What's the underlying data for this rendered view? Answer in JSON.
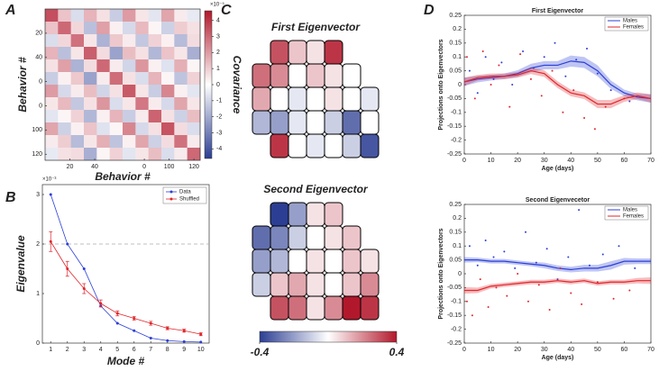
{
  "chart_data": [
    {
      "type": "heatmap",
      "panel_label": "A",
      "xlabel": "Behavior #",
      "ylabel": "Behavior #",
      "colorbar_label": "Covariance",
      "colorbar_exponent": "×10⁻⁵",
      "xlim": [
        0,
        125
      ],
      "ylim": [
        0,
        125
      ],
      "xticks": [
        20,
        40,
        {
          "value": 80,
          "label": "0"
        },
        100,
        120
      ],
      "yticks": [
        20,
        40,
        {
          "value": 60,
          "label": "0"
        },
        {
          "value": 80,
          "label": "0"
        },
        100,
        120
      ],
      "clim": [
        -4.6,
        4.6
      ],
      "cticks": [
        4,
        3,
        2,
        1,
        0,
        -1,
        -2,
        -3,
        -4
      ],
      "values": [
        [
          3.5,
          1.2,
          -0.8,
          1.5,
          0.6,
          -1.2,
          2.0,
          0.5,
          -0.6,
          1.8,
          0.4,
          -0.5
        ],
        [
          1.2,
          3.0,
          0.8,
          -1.5,
          1.9,
          0.3,
          -0.9,
          1.4,
          0.2,
          -1.1,
          1.0,
          0.6
        ],
        [
          -0.8,
          0.8,
          2.8,
          0.5,
          -1.8,
          1.1,
          0.4,
          -1.3,
          0.9,
          0.3,
          -1.6,
          0.7
        ],
        [
          1.5,
          -1.5,
          0.5,
          3.2,
          0.7,
          -2.2,
          1.3,
          0.6,
          -1.7,
          1.2,
          0.5,
          -1.9
        ],
        [
          0.6,
          1.9,
          -1.8,
          0.7,
          3.0,
          0.4,
          -1.0,
          2.1,
          0.3,
          -0.7,
          1.6,
          0.2
        ],
        [
          -1.2,
          0.3,
          1.1,
          -2.2,
          0.4,
          2.9,
          0.6,
          -0.8,
          1.5,
          0.2,
          -1.4,
          0.9
        ],
        [
          2.0,
          -0.9,
          0.4,
          1.3,
          -1.0,
          0.6,
          3.3,
          0.5,
          -1.2,
          2.4,
          0.3,
          -0.6
        ],
        [
          0.5,
          1.4,
          -1.3,
          0.6,
          2.1,
          -0.8,
          0.5,
          2.7,
          0.4,
          -0.9,
          1.8,
          0.5
        ],
        [
          -0.6,
          0.2,
          0.9,
          -1.7,
          0.3,
          1.5,
          -1.2,
          0.4,
          3.1,
          0.6,
          -1.1,
          1.3
        ],
        [
          1.8,
          -1.1,
          0.3,
          1.2,
          -0.7,
          0.2,
          2.4,
          -0.9,
          0.6,
          3.4,
          0.7,
          -0.8
        ],
        [
          0.4,
          1.0,
          -1.6,
          0.5,
          1.6,
          -1.4,
          0.3,
          1.8,
          -1.1,
          0.7,
          2.8,
          0.4
        ],
        [
          -0.5,
          0.6,
          0.7,
          -1.9,
          0.2,
          0.9,
          -0.6,
          0.5,
          1.3,
          -0.8,
          0.4,
          3.0
        ]
      ]
    },
    {
      "type": "line",
      "panel_label": "B",
      "xlabel": "Mode #",
      "ylabel": "Eigenvalue",
      "y_exponent": "×10⁻³",
      "x": [
        1,
        2,
        3,
        4,
        5,
        6,
        7,
        8,
        9,
        10
      ],
      "xlim": [
        0.5,
        10.5
      ],
      "ylim": [
        0,
        3.2
      ],
      "xticks": [
        1,
        2,
        3,
        4,
        5,
        6,
        7,
        8,
        9,
        10
      ],
      "yticks": [
        0,
        1,
        2,
        3
      ],
      "reference_line": 2,
      "legend": "upper right",
      "series": [
        {
          "name": "Data",
          "color": "#2b3fd6",
          "values": [
            3.0,
            2.0,
            1.5,
            0.75,
            0.4,
            0.25,
            0.1,
            0.05,
            0.03,
            0.02
          ]
        },
        {
          "name": "Shuffled",
          "color": "#e0262b",
          "values": [
            2.05,
            1.5,
            1.1,
            0.8,
            0.6,
            0.5,
            0.4,
            0.3,
            0.25,
            0.18
          ],
          "errors": [
            0.2,
            0.15,
            0.1,
            0.07,
            0.05,
            0.04,
            0.04,
            0.03,
            0.03,
            0.03
          ]
        }
      ]
    },
    {
      "type": "map",
      "panel_label": "C",
      "title": "First Eigenvector",
      "clim": [
        -0.4,
        0.4
      ],
      "values": [
        0.3,
        0.1,
        0.05,
        0.35,
        0.25,
        0.2,
        0,
        0.1,
        0.05,
        0,
        0.15,
        0,
        -0.05,
        0,
        0.05,
        0,
        -0.05,
        -0.15,
        -0.2,
        -0.05,
        0,
        -0.1,
        -0.3,
        0,
        0.35,
        0,
        -0.05,
        0,
        -0.1,
        -0.35
      ]
    },
    {
      "type": "map",
      "title": "Second Eigenvector",
      "clim": [
        -0.4,
        0.4
      ],
      "cticks": [
        -0.4,
        0.4
      ],
      "values": [
        -0.4,
        -0.2,
        0.05,
        0.1,
        -0.3,
        -0.25,
        -0.1,
        0,
        0.05,
        0.1,
        -0.2,
        -0.15,
        0,
        0.05,
        0,
        0.1,
        0.05,
        -0.1,
        0.1,
        0.15,
        0.05,
        0,
        0.1,
        0.2,
        0.3,
        0.25,
        0.05,
        0.2,
        0.4,
        0.35
      ]
    },
    {
      "type": "scatter",
      "panel_label": "D",
      "title": "First Eigenvector",
      "xlabel": "Age (days)",
      "ylabel": "Projections onto Eigenvectors",
      "xlim": [
        0,
        70
      ],
      "ylim": [
        -0.25,
        0.25
      ],
      "xticks": [
        0,
        10,
        20,
        30,
        40,
        50,
        60,
        70
      ],
      "yticks": [
        -0.25,
        -0.2,
        -0.15,
        -0.1,
        -0.05,
        0,
        0.05,
        0.1,
        0.15,
        0.2,
        0.25
      ],
      "legend": "upper right",
      "fit_x": [
        0,
        5,
        10,
        15,
        20,
        25,
        30,
        35,
        40,
        45,
        50,
        55,
        60,
        65,
        70
      ],
      "series": [
        {
          "name": "Males",
          "color": "#2b3fd6",
          "x": [
            2,
            5,
            8,
            11,
            14,
            18,
            22,
            26,
            30,
            34,
            38,
            42,
            46,
            50,
            55,
            62
          ],
          "values": [
            0.05,
            -0.03,
            0.1,
            0.02,
            0.08,
            0.0,
            0.12,
            0.06,
            0.1,
            0.15,
            0.03,
            0.09,
            0.13,
            0.04,
            -0.02,
            -0.06
          ],
          "fit": [
            0.01,
            0.02,
            0.025,
            0.03,
            0.04,
            0.06,
            0.07,
            0.07,
            0.085,
            0.08,
            0.05,
            0.0,
            -0.03,
            -0.045,
            -0.05
          ],
          "fit_err": [
            0.015,
            0.012,
            0.01,
            0.01,
            0.012,
            0.015,
            0.015,
            0.015,
            0.02,
            0.02,
            0.02,
            0.015,
            0.012,
            0.012,
            0.015
          ]
        },
        {
          "name": "Females",
          "color": "#e0262b",
          "x": [
            1,
            4,
            7,
            10,
            13,
            17,
            21,
            25,
            29,
            33,
            37,
            41,
            45,
            49,
            53,
            60
          ],
          "values": [
            0.1,
            -0.05,
            0.12,
            0.0,
            0.07,
            -0.08,
            0.11,
            0.02,
            -0.04,
            0.05,
            -0.1,
            -0.02,
            -0.12,
            -0.16,
            -0.08,
            -0.05
          ],
          "fit": [
            0.01,
            0.025,
            0.03,
            0.03,
            0.035,
            0.05,
            0.04,
            0.0,
            -0.03,
            -0.04,
            -0.07,
            -0.07,
            -0.05,
            -0.04,
            -0.05
          ],
          "fit_err": [
            0.015,
            0.01,
            0.01,
            0.01,
            0.01,
            0.012,
            0.012,
            0.012,
            0.012,
            0.012,
            0.015,
            0.015,
            0.012,
            0.012,
            0.015
          ]
        }
      ]
    },
    {
      "type": "scatter",
      "title": "Second Eigenvecetor",
      "xlabel": "Age (days)",
      "ylabel": "Projections onto Eigenvectors",
      "xlim": [
        0,
        70
      ],
      "ylim": [
        -0.25,
        0.25
      ],
      "xticks": [
        0,
        10,
        20,
        30,
        40,
        50,
        60,
        70
      ],
      "yticks": [
        -0.25,
        -0.2,
        -0.15,
        -0.1,
        -0.05,
        0,
        0.05,
        0.1,
        0.15,
        0.2,
        0.25
      ],
      "legend": "upper right",
      "fit_x": [
        0,
        5,
        10,
        15,
        20,
        25,
        30,
        35,
        40,
        45,
        50,
        55,
        60,
        65,
        70
      ],
      "series": [
        {
          "name": "Males",
          "color": "#2b3fd6",
          "x": [
            2,
            5,
            8,
            11,
            15,
            19,
            23,
            27,
            31,
            35,
            39,
            43,
            47,
            52,
            58,
            64
          ],
          "values": [
            0.1,
            0.03,
            0.12,
            0.06,
            0.08,
            0.02,
            0.15,
            0.04,
            0.09,
            -0.02,
            0.06,
            0.23,
            0.03,
            0.07,
            0.1,
            0.02
          ],
          "fit": [
            0.05,
            0.05,
            0.045,
            0.045,
            0.04,
            0.035,
            0.03,
            0.02,
            0.015,
            0.02,
            0.02,
            0.03,
            0.045,
            0.045,
            0.045
          ],
          "fit_err": [
            0.01,
            0.008,
            0.008,
            0.008,
            0.008,
            0.008,
            0.01,
            0.01,
            0.01,
            0.012,
            0.012,
            0.015,
            0.012,
            0.01,
            0.01
          ]
        },
        {
          "name": "Females",
          "color": "#e0262b",
          "x": [
            1,
            3,
            6,
            9,
            12,
            16,
            20,
            24,
            28,
            32,
            36,
            40,
            44,
            50,
            56,
            62
          ],
          "values": [
            -0.1,
            -0.15,
            -0.02,
            -0.12,
            -0.05,
            -0.08,
            0.0,
            -0.1,
            -0.04,
            -0.13,
            0.02,
            -0.07,
            -0.11,
            -0.03,
            -0.09,
            -0.06
          ],
          "fit": [
            -0.06,
            -0.06,
            -0.045,
            -0.04,
            -0.035,
            -0.03,
            -0.03,
            -0.025,
            -0.03,
            -0.025,
            -0.035,
            -0.03,
            -0.03,
            -0.025,
            -0.025
          ],
          "fit_err": [
            0.012,
            0.01,
            0.008,
            0.008,
            0.008,
            0.008,
            0.008,
            0.008,
            0.008,
            0.008,
            0.008,
            0.008,
            0.008,
            0.01,
            0.012
          ]
        }
      ]
    }
  ]
}
